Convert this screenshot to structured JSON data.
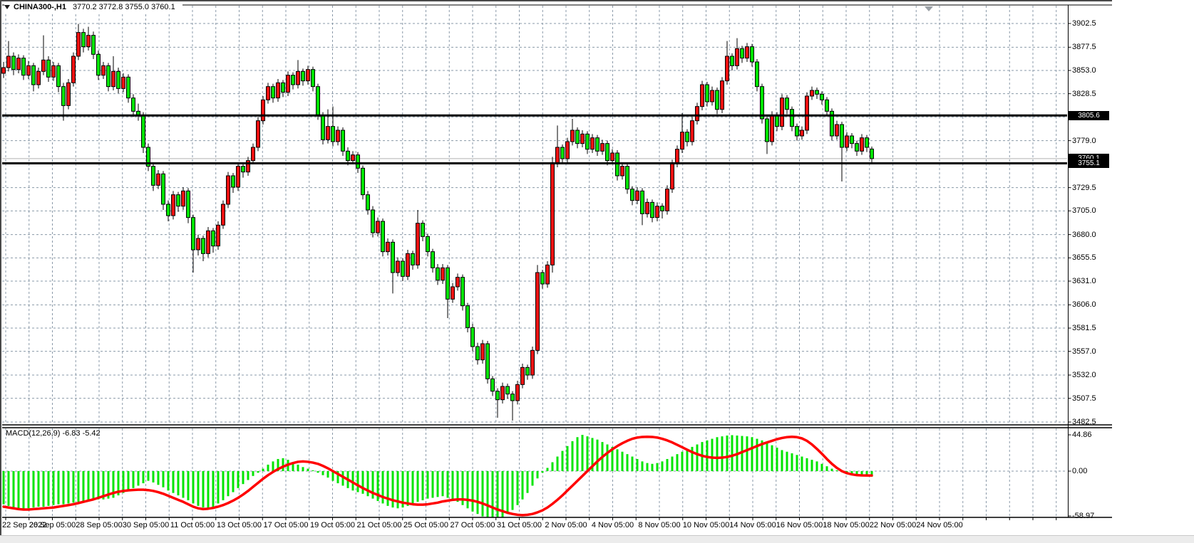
{
  "window": {
    "title_symbol": "CHINA300-,H1",
    "title_ohlc": "3770.2 3772.8 3755.0 3760.1",
    "macd_label": "MACD(12,26,9) -6.83 -5.42"
  },
  "chart_data": {
    "type": "candlestick",
    "symbol": "CHINA300-",
    "timeframe": "H1",
    "indicator": "MACD(12,26,9)",
    "ohlc_display": {
      "open": "3770.2",
      "high": "3772.8",
      "low": "3755.0",
      "close": "3760.1"
    },
    "price_axis": {
      "min": 3482.5,
      "max": 3902.5,
      "labels": [
        "3902.5",
        "3877.5",
        "3853.0",
        "3828.5",
        "3779.0",
        "3729.5",
        "3705.0",
        "3680.0",
        "3655.5",
        "3631.0",
        "3606.0",
        "3581.5",
        "3557.0",
        "3532.0",
        "3507.5",
        "3482.5"
      ],
      "gridlines": [
        3902.5,
        3877.5,
        3853.0,
        3828.5,
        3804.0,
        3779.0,
        3754.4,
        3729.5,
        3705.0,
        3680.0,
        3655.5,
        3631.0,
        3606.0,
        3581.5,
        3557.0,
        3532.0,
        3507.5,
        3482.5
      ]
    },
    "hlines": [
      {
        "price": 3805.6,
        "label": "3805.6"
      },
      {
        "price": 3755.1,
        "label": "3755.1"
      }
    ],
    "current_price": {
      "price": 3760.1,
      "label": "3760.1"
    },
    "time_axis": {
      "labels": [
        "22 Sep 2022",
        "26 Sep 05:00",
        "28 Sep 05:00",
        "30 Sep 05:00",
        "11 Oct 05:00",
        "13 Oct 05:00",
        "17 Oct 05:00",
        "19 Oct 05:00",
        "21 Oct 05:00",
        "25 Oct 05:00",
        "27 Oct 05:00",
        "31 Oct 05:00",
        "2 Nov 05:00",
        "4 Nov 05:00",
        "8 Nov 05:00",
        "10 Nov 05:00",
        "14 Nov 05:00",
        "16 Nov 05:00",
        "18 Nov 05:00",
        "22 Nov 05:00",
        "24 Nov 05:00"
      ]
    },
    "candles": [
      [
        3850,
        3862,
        3845,
        3856
      ],
      [
        3856,
        3884,
        3852,
        3868
      ],
      [
        3868,
        3872,
        3848,
        3854
      ],
      [
        3854,
        3870,
        3850,
        3866
      ],
      [
        3866,
        3869,
        3843,
        3848
      ],
      [
        3848,
        3863,
        3844,
        3858
      ],
      [
        3858,
        3861,
        3831,
        3838
      ],
      [
        3838,
        3856,
        3834,
        3852
      ],
      [
        3852,
        3890,
        3848,
        3864
      ],
      [
        3864,
        3868,
        3841,
        3846
      ],
      [
        3846,
        3862,
        3842,
        3858
      ],
      [
        3858,
        3861,
        3830,
        3836
      ],
      [
        3836,
        3840,
        3800,
        3816
      ],
      [
        3816,
        3844,
        3812,
        3840
      ],
      [
        3840,
        3872,
        3836,
        3868
      ],
      [
        3868,
        3902,
        3864,
        3893
      ],
      [
        3893,
        3897,
        3872,
        3878
      ],
      [
        3878,
        3899,
        3874,
        3890
      ],
      [
        3890,
        3894,
        3865,
        3870
      ],
      [
        3870,
        3874,
        3843,
        3848
      ],
      [
        3848,
        3862,
        3844,
        3858
      ],
      [
        3858,
        3861,
        3831,
        3836
      ],
      [
        3836,
        3868,
        3832,
        3852
      ],
      [
        3852,
        3856,
        3829,
        3834
      ],
      [
        3834,
        3850,
        3830,
        3846
      ],
      [
        3846,
        3849,
        3819,
        3824
      ],
      [
        3824,
        3828,
        3804,
        3810
      ],
      [
        3810,
        3818,
        3800,
        3806
      ],
      [
        3806,
        3809,
        3766,
        3772
      ],
      [
        3772,
        3776,
        3747,
        3752
      ],
      [
        3752,
        3756,
        3726,
        3732
      ],
      [
        3732,
        3748,
        3728,
        3744
      ],
      [
        3744,
        3747,
        3706,
        3712
      ],
      [
        3712,
        3716,
        3694,
        3700
      ],
      [
        3700,
        3726,
        3696,
        3722
      ],
      [
        3722,
        3725,
        3704,
        3710
      ],
      [
        3710,
        3730,
        3706,
        3726
      ],
      [
        3726,
        3729,
        3692,
        3698
      ],
      [
        3698,
        3701,
        3640,
        3664
      ],
      [
        3664,
        3680,
        3658,
        3676
      ],
      [
        3676,
        3679,
        3652,
        3660
      ],
      [
        3660,
        3688,
        3656,
        3684
      ],
      [
        3684,
        3687,
        3661,
        3668
      ],
      [
        3668,
        3694,
        3664,
        3690
      ],
      [
        3690,
        3716,
        3686,
        3712
      ],
      [
        3712,
        3746,
        3708,
        3742
      ],
      [
        3742,
        3745,
        3724,
        3730
      ],
      [
        3730,
        3756,
        3726,
        3752
      ],
      [
        3752,
        3755,
        3740,
        3746
      ],
      [
        3746,
        3762,
        3742,
        3758
      ],
      [
        3758,
        3776,
        3754,
        3772
      ],
      [
        3772,
        3804,
        3768,
        3800
      ],
      [
        3800,
        3826,
        3796,
        3822
      ],
      [
        3822,
        3840,
        3818,
        3836
      ],
      [
        3836,
        3839,
        3819,
        3824
      ],
      [
        3824,
        3844,
        3820,
        3840
      ],
      [
        3840,
        3843,
        3825,
        3830
      ],
      [
        3830,
        3852,
        3826,
        3848
      ],
      [
        3848,
        3851,
        3833,
        3838
      ],
      [
        3838,
        3864,
        3834,
        3852
      ],
      [
        3852,
        3855,
        3837,
        3842
      ],
      [
        3842,
        3858,
        3838,
        3854
      ],
      [
        3854,
        3857,
        3831,
        3836
      ],
      [
        3836,
        3839,
        3801,
        3806
      ],
      [
        3806,
        3809,
        3775,
        3780
      ],
      [
        3780,
        3812,
        3776,
        3794
      ],
      [
        3794,
        3815,
        3773,
        3778
      ],
      [
        3778,
        3794,
        3774,
        3790
      ],
      [
        3790,
        3793,
        3763,
        3768
      ],
      [
        3768,
        3772,
        3753,
        3758
      ],
      [
        3758,
        3768,
        3754,
        3764
      ],
      [
        3764,
        3767,
        3745,
        3750
      ],
      [
        3750,
        3753,
        3717,
        3722
      ],
      [
        3722,
        3726,
        3701,
        3706
      ],
      [
        3706,
        3710,
        3677,
        3682
      ],
      [
        3682,
        3698,
        3678,
        3694
      ],
      [
        3694,
        3697,
        3657,
        3662
      ],
      [
        3662,
        3676,
        3658,
        3672
      ],
      [
        3672,
        3675,
        3618,
        3640
      ],
      [
        3640,
        3656,
        3636,
        3652
      ],
      [
        3652,
        3655,
        3631,
        3636
      ],
      [
        3636,
        3664,
        3632,
        3660
      ],
      [
        3660,
        3663,
        3643,
        3648
      ],
      [
        3648,
        3706,
        3644,
        3692
      ],
      [
        3692,
        3695,
        3673,
        3678
      ],
      [
        3678,
        3681,
        3657,
        3662
      ],
      [
        3662,
        3665,
        3640,
        3645
      ],
      [
        3645,
        3649,
        3627,
        3632
      ],
      [
        3632,
        3649,
        3628,
        3645
      ],
      [
        3645,
        3648,
        3592,
        3612
      ],
      [
        3612,
        3629,
        3608,
        3625
      ],
      [
        3625,
        3639,
        3621,
        3635
      ],
      [
        3635,
        3638,
        3600,
        3605
      ],
      [
        3605,
        3608,
        3577,
        3582
      ],
      [
        3582,
        3586,
        3557,
        3562
      ],
      [
        3562,
        3566,
        3543,
        3548
      ],
      [
        3548,
        3569,
        3544,
        3565
      ],
      [
        3565,
        3568,
        3523,
        3528
      ],
      [
        3528,
        3531,
        3510,
        3515
      ],
      [
        3515,
        3518,
        3487,
        3506
      ],
      [
        3506,
        3524,
        3502,
        3520
      ],
      [
        3520,
        3523,
        3507,
        3512
      ],
      [
        3512,
        3515,
        3484,
        3505
      ],
      [
        3505,
        3526,
        3501,
        3522
      ],
      [
        3522,
        3544,
        3518,
        3540
      ],
      [
        3540,
        3543,
        3527,
        3532
      ],
      [
        3532,
        3562,
        3528,
        3558
      ],
      [
        3558,
        3648,
        3554,
        3640
      ],
      [
        3640,
        3643,
        3623,
        3628
      ],
      [
        3628,
        3652,
        3624,
        3648
      ],
      [
        3648,
        3762,
        3640,
        3755
      ],
      [
        3755,
        3795,
        3751,
        3772
      ],
      [
        3772,
        3775,
        3755,
        3760
      ],
      [
        3760,
        3782,
        3756,
        3778
      ],
      [
        3778,
        3802,
        3774,
        3790
      ],
      [
        3790,
        3793,
        3771,
        3776
      ],
      [
        3776,
        3790,
        3772,
        3786
      ],
      [
        3786,
        3789,
        3765,
        3770
      ],
      [
        3770,
        3786,
        3766,
        3782
      ],
      [
        3782,
        3785,
        3763,
        3768
      ],
      [
        3768,
        3780,
        3764,
        3776
      ],
      [
        3776,
        3779,
        3753,
        3758
      ],
      [
        3758,
        3770,
        3754,
        3766
      ],
      [
        3766,
        3769,
        3737,
        3742
      ],
      [
        3742,
        3756,
        3738,
        3752
      ],
      [
        3752,
        3755,
        3723,
        3728
      ],
      [
        3728,
        3731,
        3711,
        3716
      ],
      [
        3716,
        3730,
        3712,
        3726
      ],
      [
        3726,
        3729,
        3690,
        3702
      ],
      [
        3702,
        3718,
        3698,
        3714
      ],
      [
        3714,
        3717,
        3693,
        3698
      ],
      [
        3698,
        3714,
        3694,
        3710
      ],
      [
        3710,
        3713,
        3697,
        3705
      ],
      [
        3705,
        3732,
        3701,
        3728
      ],
      [
        3728,
        3759,
        3724,
        3755
      ],
      [
        3755,
        3774,
        3751,
        3770
      ],
      [
        3770,
        3808,
        3766,
        3788
      ],
      [
        3788,
        3791,
        3773,
        3778
      ],
      [
        3778,
        3804,
        3774,
        3800
      ],
      [
        3800,
        3819,
        3796,
        3815
      ],
      [
        3815,
        3842,
        3811,
        3838
      ],
      [
        3838,
        3841,
        3815,
        3820
      ],
      [
        3820,
        3836,
        3816,
        3832
      ],
      [
        3832,
        3835,
        3807,
        3812
      ],
      [
        3812,
        3846,
        3808,
        3842
      ],
      [
        3842,
        3884,
        3838,
        3868
      ],
      [
        3868,
        3871,
        3853,
        3858
      ],
      [
        3858,
        3887,
        3854,
        3876
      ],
      [
        3876,
        3879,
        3861,
        3866
      ],
      [
        3866,
        3882,
        3862,
        3878
      ],
      [
        3878,
        3881,
        3857,
        3862
      ],
      [
        3862,
        3865,
        3831,
        3836
      ],
      [
        3836,
        3839,
        3797,
        3802
      ],
      [
        3802,
        3805,
        3765,
        3778
      ],
      [
        3778,
        3810,
        3774,
        3806
      ],
      [
        3806,
        3809,
        3789,
        3794
      ],
      [
        3794,
        3828,
        3790,
        3824
      ],
      [
        3824,
        3827,
        3807,
        3812
      ],
      [
        3812,
        3815,
        3789,
        3794
      ],
      [
        3794,
        3797,
        3779,
        3784
      ],
      [
        3784,
        3794,
        3780,
        3790
      ],
      [
        3790,
        3830,
        3786,
        3826
      ],
      [
        3826,
        3836,
        3822,
        3832
      ],
      [
        3832,
        3835,
        3823,
        3828
      ],
      [
        3828,
        3831,
        3817,
        3822
      ],
      [
        3822,
        3825,
        3805,
        3810
      ],
      [
        3810,
        3813,
        3779,
        3784
      ],
      [
        3784,
        3800,
        3780,
        3796
      ],
      [
        3796,
        3799,
        3736,
        3772
      ],
      [
        3772,
        3788,
        3768,
        3784
      ],
      [
        3784,
        3787,
        3771,
        3776
      ],
      [
        3776,
        3779,
        3763,
        3768
      ],
      [
        3768,
        3786,
        3764,
        3782
      ],
      [
        3782,
        3785,
        3767,
        3772
      ],
      [
        3770.2,
        3772.8,
        3755.0,
        3760.1
      ]
    ],
    "macd": {
      "params": "12,26,9",
      "macd_value": -6.83,
      "signal_value": -5.42,
      "axis_labels": [
        "44.86",
        "0.00",
        "-58.97"
      ],
      "axis_values": [
        44.86,
        0,
        -58.97
      ],
      "hist": [
        -41,
        -43,
        -45,
        -47,
        -47,
        -46,
        -45,
        -44,
        -44,
        -43,
        -42,
        -41,
        -41,
        -40,
        -39,
        -38,
        -37,
        -36,
        -36,
        -35,
        -35,
        -34,
        -33,
        -30,
        -27,
        -24,
        -21,
        -18,
        -15,
        -12,
        -14,
        -17,
        -20,
        -24,
        -27,
        -30,
        -33,
        -36,
        -40,
        -43,
        -45,
        -46,
        -44,
        -40,
        -36,
        -31,
        -26,
        -21,
        -16,
        -11,
        -6,
        -2,
        3,
        8,
        12,
        15,
        16,
        14,
        11,
        8,
        5,
        3,
        1,
        -2,
        -5,
        -8,
        -12,
        -15,
        -18,
        -21,
        -24,
        -26,
        -28,
        -31,
        -34,
        -37,
        -40,
        -43,
        -45,
        -46,
        -45,
        -43,
        -41,
        -38,
        -36,
        -34,
        -33,
        -32,
        -31,
        -33,
        -35,
        -38,
        -42,
        -46,
        -50,
        -53,
        -56,
        -58,
        -59,
        -58.5,
        -57,
        -53,
        -48,
        -42,
        -35,
        -27,
        -18,
        -9,
        -2,
        4,
        11,
        18,
        25,
        31,
        37,
        42,
        44.86,
        43,
        41,
        39,
        36,
        33,
        30,
        27,
        24,
        21,
        18,
        15,
        12,
        10,
        9,
        10,
        12,
        15,
        18,
        21,
        24,
        27,
        30,
        33,
        36,
        38,
        40,
        42,
        43,
        44,
        44.5,
        44,
        43.5,
        43,
        42,
        40,
        38,
        35,
        32,
        29,
        26,
        24,
        22,
        20,
        18,
        16,
        14,
        12,
        9,
        6,
        3,
        1,
        -1,
        -2,
        -3.5,
        -4.5,
        -5.5,
        -6.2,
        -6.83
      ],
      "signal": [
        -44,
        -45,
        -46,
        -47,
        -47.5,
        -47.5,
        -47,
        -46.5,
        -46,
        -45.5,
        -45,
        -44,
        -43,
        -42,
        -41,
        -39.5,
        -38,
        -36.5,
        -35,
        -33,
        -31,
        -29,
        -27,
        -25.5,
        -24.5,
        -23.8,
        -23.3,
        -23,
        -23,
        -23.5,
        -24.5,
        -26,
        -28,
        -30.5,
        -33,
        -35.5,
        -38,
        -41,
        -44,
        -46,
        -47,
        -46.5,
        -45.5,
        -44,
        -42,
        -39.5,
        -36.5,
        -33,
        -29,
        -24.5,
        -19.5,
        -14.5,
        -9.5,
        -5,
        -1,
        2.5,
        5.5,
        8,
        10,
        11.5,
        12,
        11.5,
        10.5,
        9,
        6.5,
        3.5,
        0,
        -3.5,
        -7,
        -10.5,
        -14,
        -17.5,
        -21,
        -24,
        -27,
        -29.5,
        -32,
        -34,
        -36,
        -37.5,
        -39,
        -40,
        -41,
        -41.5,
        -41.5,
        -41,
        -40,
        -39,
        -37.5,
        -36.5,
        -35.5,
        -35,
        -35,
        -35.5,
        -36.5,
        -38,
        -40,
        -42.5,
        -45,
        -47.5,
        -49.5,
        -51.5,
        -53,
        -54,
        -54.5,
        -54,
        -53,
        -51,
        -48.5,
        -45,
        -40.5,
        -35.5,
        -30,
        -24,
        -18,
        -12,
        -6,
        0,
        6,
        12,
        17.5,
        22.5,
        27,
        31,
        34.5,
        37.5,
        40,
        41.5,
        42.3,
        42.5,
        42.3,
        41.5,
        40,
        38,
        35.5,
        32.5,
        29.5,
        26.5,
        23.5,
        21,
        19,
        17.5,
        16.7,
        16.4,
        16.7,
        17.5,
        19,
        21,
        23.5,
        26,
        28.5,
        31,
        33.5,
        35.5,
        37.5,
        39.5,
        41,
        42,
        42.5,
        42,
        40.5,
        37.5,
        33,
        27.5,
        21.5,
        15,
        9,
        4,
        0,
        -2.5,
        -4,
        -5,
        -5.3,
        -5.4,
        -5.42
      ]
    },
    "colors": {
      "bull": "#ee1010",
      "bear": "#00e400",
      "wick": "#000000",
      "body_outline": "#000000",
      "hist": "#00e400",
      "signal": "#ff0000",
      "grid": "#8f9aa6-unused",
      "grid_color": "#8a99a8",
      "hline": "#000000",
      "price_line": "#b0b0b0",
      "tag_bg": "#000000",
      "tag_text": "#ffffff",
      "marker": "#9aa0a6"
    }
  }
}
